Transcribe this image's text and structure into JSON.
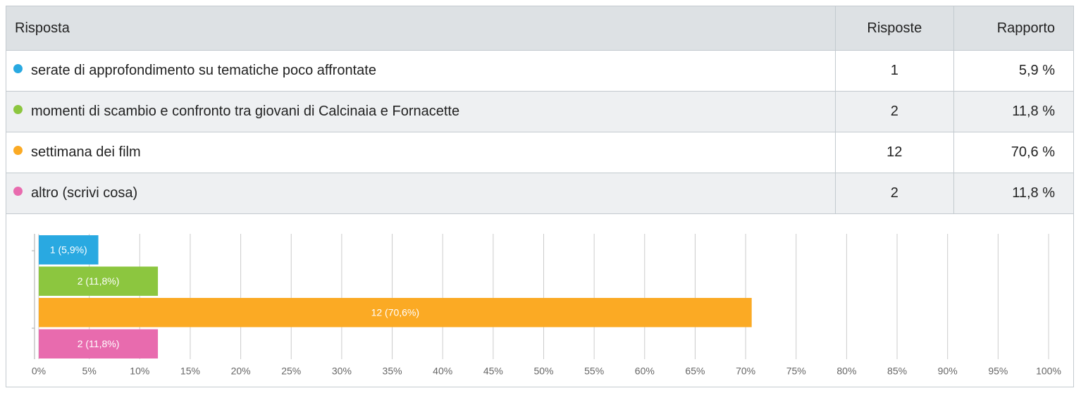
{
  "table": {
    "headers": [
      "Risposta",
      "Risposte",
      "Rapporto"
    ],
    "rows": [
      {
        "label": "serate di approfondimento su tematiche poco affrontate",
        "count": 1,
        "ratio": "5,9 %",
        "color": "#29a9e1"
      },
      {
        "label": "momenti di scambio e confronto tra giovani di Calcinaia e Fornacette",
        "count": 2,
        "ratio": "11,8 %",
        "color": "#8cc63f"
      },
      {
        "label": "settimana dei film",
        "count": 12,
        "ratio": "70,6 %",
        "color": "#fbaa24"
      },
      {
        "label": "altro (scrivi cosa)",
        "count": 2,
        "ratio": "11,8 %",
        "color": "#e86bae"
      }
    ]
  },
  "chart_data": {
    "type": "bar",
    "orientation": "horizontal",
    "values": [
      5.9,
      11.8,
      70.6,
      11.8
    ],
    "value_labels": [
      "1 (5,9%)",
      "2 (11,8%)",
      "12 (70,6%)",
      "2 (11,8%)"
    ],
    "colors": [
      "#29a9e1",
      "#8cc63f",
      "#fbaa24",
      "#e86bae"
    ],
    "xlim": [
      0,
      100
    ],
    "xticks": [
      {
        "value": 0,
        "label": "0%"
      },
      {
        "value": 5,
        "label": "5%"
      },
      {
        "value": 10,
        "label": "10%"
      },
      {
        "value": 15,
        "label": "15%"
      },
      {
        "value": 20,
        "label": "20%"
      },
      {
        "value": 25,
        "label": "25%"
      },
      {
        "value": 30,
        "label": "30%"
      },
      {
        "value": 35,
        "label": "35%"
      },
      {
        "value": 40,
        "label": "40%"
      },
      {
        "value": 45,
        "label": "45%"
      },
      {
        "value": 50,
        "label": "50%"
      },
      {
        "value": 55,
        "label": "55%"
      },
      {
        "value": 60,
        "label": "60%"
      },
      {
        "value": 65,
        "label": "65%"
      },
      {
        "value": 70,
        "label": "70%"
      },
      {
        "value": 75,
        "label": "75%"
      },
      {
        "value": 80,
        "label": "80%"
      },
      {
        "value": 85,
        "label": "85%"
      },
      {
        "value": 90,
        "label": "90%"
      },
      {
        "value": 95,
        "label": "95%"
      },
      {
        "value": 100,
        "label": "100%"
      }
    ],
    "grid": true
  }
}
